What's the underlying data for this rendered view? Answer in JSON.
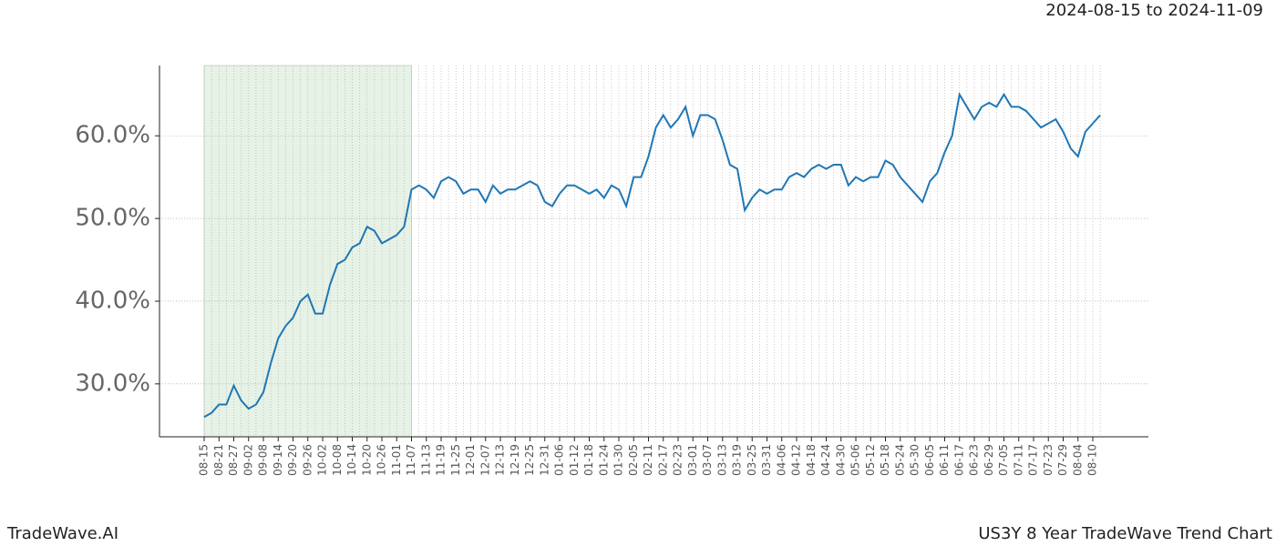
{
  "chart_data": {
    "type": "line",
    "date_range": "2024-08-15 to 2024-11-09",
    "brand": "TradeWave.AI",
    "footer_title": "US3Y 8 Year TradeWave Trend Chart",
    "categories": [
      "08-15",
      null,
      "08-21",
      null,
      "08-27",
      null,
      "09-02",
      null,
      "09-08",
      null,
      "09-14",
      null,
      "09-20",
      null,
      "09-26",
      null,
      "10-02",
      null,
      "10-08",
      null,
      "10-14",
      null,
      "10-20",
      null,
      "10-26",
      null,
      "11-01",
      null,
      "11-07",
      null,
      "11-13",
      null,
      "11-19",
      null,
      "11-25",
      null,
      "12-01",
      null,
      "12-07",
      null,
      "12-13",
      null,
      "12-19",
      null,
      "12-25",
      null,
      "12-31",
      null,
      "01-06",
      null,
      "01-12",
      null,
      "01-18",
      null,
      "01-24",
      null,
      "01-30",
      null,
      "02-05",
      null,
      "02-11",
      null,
      "02-17",
      null,
      "02-23",
      null,
      "03-01",
      null,
      "03-07",
      null,
      "03-13",
      null,
      "03-19",
      null,
      "03-25",
      null,
      "03-31",
      null,
      "04-06",
      null,
      "04-12",
      null,
      "04-18",
      null,
      "04-24",
      null,
      "04-30",
      null,
      "05-06",
      null,
      "05-12",
      null,
      "05-18",
      null,
      "05-24",
      null,
      "05-30",
      null,
      "06-05",
      null,
      "06-11",
      null,
      "06-17",
      null,
      "06-23",
      null,
      "06-29",
      null,
      "07-05",
      null,
      "07-11",
      null,
      "07-17",
      null,
      "07-23",
      null,
      "07-29",
      null,
      "08-04",
      null,
      "08-10",
      null
    ],
    "values": [
      26,
      26.5,
      27.5,
      27.5,
      29.8,
      28,
      27,
      27.5,
      29,
      32.5,
      35.5,
      37,
      38,
      40,
      40.8,
      38.5,
      38.5,
      42,
      44.5,
      45,
      46.5,
      47,
      49,
      48.5,
      47,
      47.5,
      48,
      49,
      53.5,
      54,
      53.5,
      52.5,
      54.5,
      55,
      54.5,
      53,
      53.5,
      53.5,
      52,
      54,
      53,
      53.5,
      53.5,
      54,
      54.5,
      54,
      52,
      51.5,
      53,
      54,
      54,
      53.5,
      53,
      53.5,
      52.5,
      54,
      53.5,
      51.5,
      55,
      55,
      57.5,
      61,
      62.5,
      61,
      62,
      63.5,
      60,
      62.5,
      62.5,
      62,
      59.5,
      56.5,
      56,
      51,
      52.5,
      53.5,
      53,
      53.5,
      53.5,
      55,
      55.5,
      55,
      56,
      56.5,
      56,
      56.5,
      56.5,
      54,
      55,
      54.5,
      55,
      55,
      57,
      56.5,
      55,
      54,
      53,
      52,
      54.5,
      55.5,
      58,
      60,
      65,
      63.5,
      62,
      63.5,
      64,
      63.5,
      65,
      63.5,
      63.5,
      63,
      62,
      61,
      61.5,
      62,
      60.5,
      58.5,
      57.5,
      60.5,
      61.5,
      62.5
    ],
    "color": "#1f77b4",
    "highlight": {
      "from": 0,
      "to": 28,
      "color": "#e6f2e6"
    },
    "ylim": [
      23.6,
      68.5
    ],
    "yticks": [
      {
        "value": 30,
        "label": "30.0%"
      },
      {
        "value": 40,
        "label": "40.0%"
      },
      {
        "value": 50,
        "label": "50.0%"
      },
      {
        "value": 60,
        "label": "60.0%"
      }
    ],
    "grid": true
  }
}
